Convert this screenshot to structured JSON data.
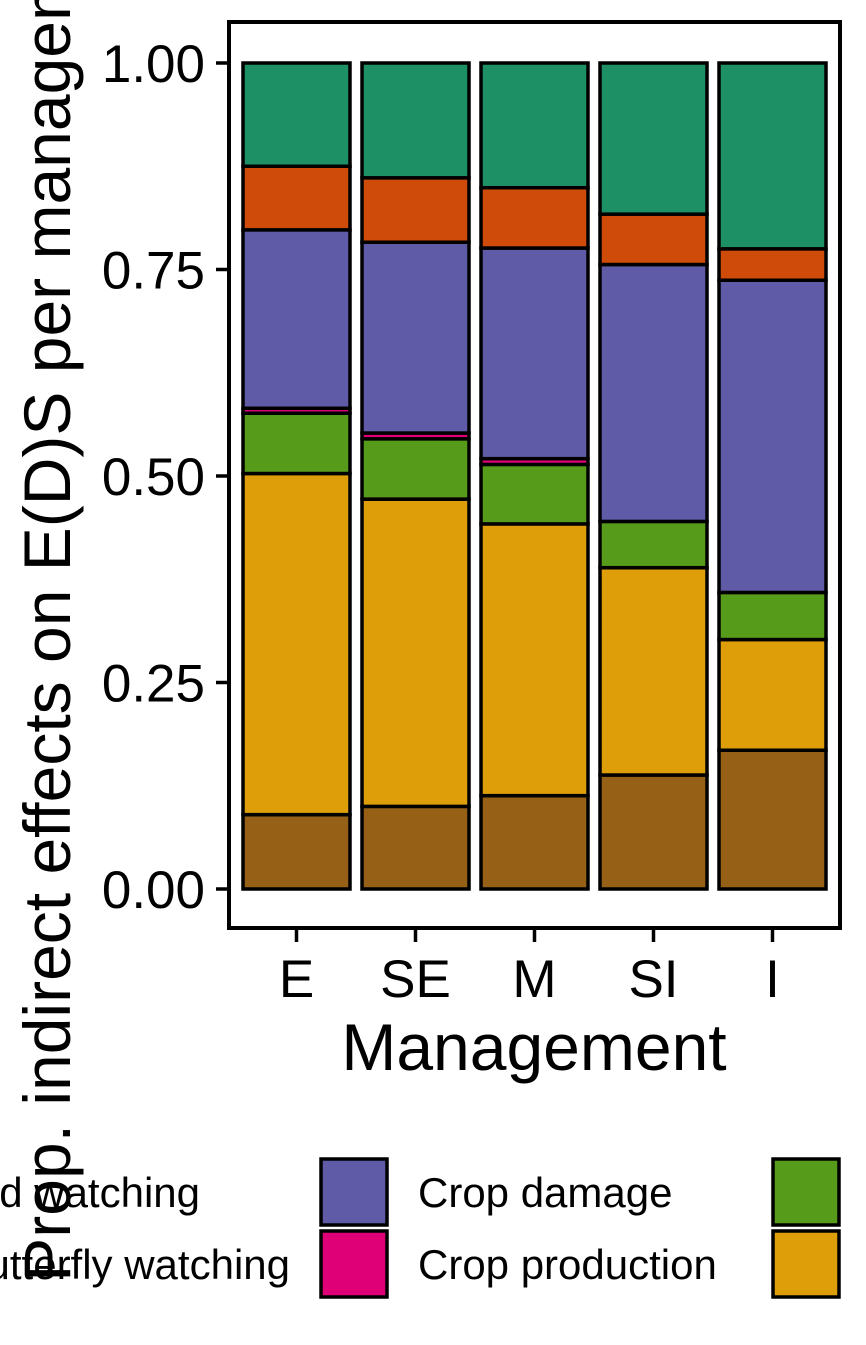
{
  "chart_data": {
    "type": "bar",
    "stacked": true,
    "xlabel": "Management",
    "ylabel": "Prop. indirect effects on E(D)S per management",
    "ylim": [
      0,
      1
    ],
    "yticks": [
      "0.00",
      "0.25",
      "0.50",
      "0.75",
      "1.00"
    ],
    "ytick_values": [
      0,
      0.25,
      0.5,
      0.75,
      1.0
    ],
    "categories": [
      "E",
      "SE",
      "M",
      "SI",
      "I"
    ],
    "grid": false,
    "legend_position": "bottom",
    "series": [
      {
        "name": "",
        "color": "#966117",
        "values": [
          0.09,
          0.1,
          0.113,
          0.138,
          0.168
        ]
      },
      {
        "name": "Crop production",
        "color": "#DE9E0A",
        "values": [
          0.413,
          0.372,
          0.329,
          0.251,
          0.134
        ]
      },
      {
        "name": "",
        "color": "#579B1A",
        "values": [
          0.073,
          0.073,
          0.072,
          0.056,
          0.057
        ]
      },
      {
        "name": "Butterfly watching",
        "color": "#DF0077",
        "values": [
          0.006,
          0.007,
          0.007,
          0.0,
          0.0
        ]
      },
      {
        "name": "Crop damage",
        "color": "#605BA6",
        "values": [
          0.216,
          0.231,
          0.255,
          0.311,
          0.378
        ]
      },
      {
        "name": "",
        "color": "#CE4B0A",
        "values": [
          0.077,
          0.078,
          0.073,
          0.061,
          0.038
        ]
      },
      {
        "name": "Bird watching",
        "color": "#1E9066",
        "values": [
          0.125,
          0.139,
          0.151,
          0.183,
          0.225
        ]
      }
    ],
    "legend": [
      {
        "label": "Bird watching",
        "color": "#1E9066",
        "swatch_visible": false
      },
      {
        "label": "Butterfly watching",
        "color": "#DF0077",
        "swatch_visible": false
      },
      {
        "label": "",
        "color": "#605BA6",
        "swatch_visible": true
      },
      {
        "label": "",
        "color": "#DF0077",
        "swatch_visible": true
      },
      {
        "label": "Crop damage",
        "color": "#605BA6",
        "swatch_visible": false
      },
      {
        "label": "Crop production",
        "color": "#DE9E0A",
        "swatch_visible": false
      },
      {
        "label": "",
        "color": "#579B1A",
        "swatch_visible": true
      },
      {
        "label": "",
        "color": "#DE9E0A",
        "swatch_visible": true
      }
    ]
  }
}
